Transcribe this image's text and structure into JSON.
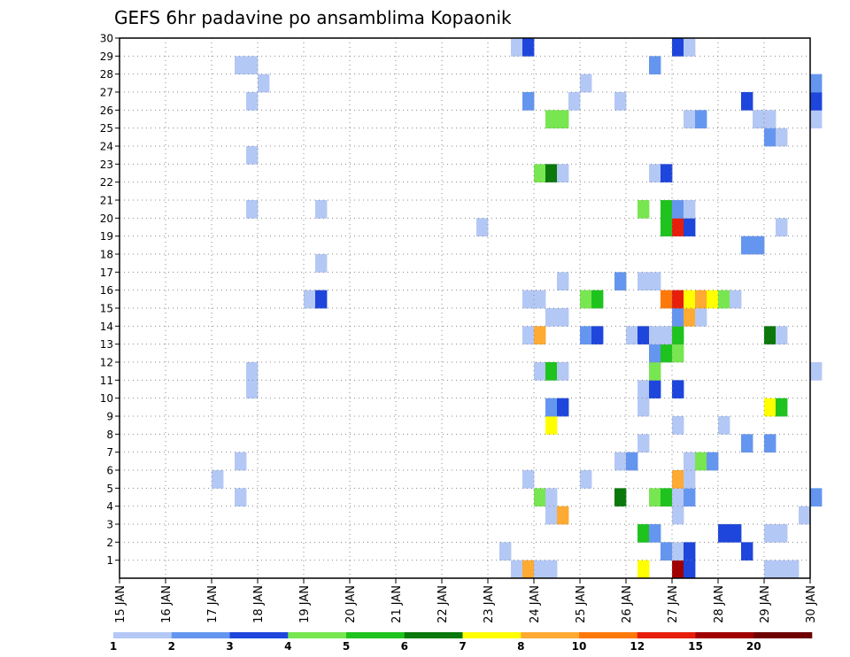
{
  "chart_data": {
    "type": "heatmap",
    "title": "GEFS 6hr padavine po ansamblima Kopaonik",
    "x_labels": [
      "15 JAN",
      "16 JAN",
      "17 JAN",
      "18 JAN",
      "19 JAN",
      "20 JAN",
      "21 JAN",
      "22 JAN",
      "23 JAN",
      "24 JAN",
      "25 JAN",
      "26 JAN",
      "27 JAN",
      "28 JAN",
      "29 JAN",
      "30 JAN"
    ],
    "y_labels": [
      "1",
      "2",
      "3",
      "4",
      "5",
      "6",
      "7",
      "8",
      "9",
      "10",
      "11",
      "12",
      "13",
      "14",
      "15",
      "16",
      "17",
      "18",
      "19",
      "20",
      "21",
      "22",
      "23",
      "24",
      "25",
      "26",
      "27",
      "28",
      "29",
      "30"
    ],
    "ylim": [
      0,
      30
    ],
    "grid": true,
    "legend": {
      "position": "bottom",
      "ticks": [
        "1",
        "2",
        "3",
        "4",
        "5",
        "6",
        "7",
        "8",
        "10",
        "12",
        "15",
        "20"
      ],
      "colors": [
        "#b4c8f5",
        "#6496f0",
        "#1e46dc",
        "#78e650",
        "#1ec31e",
        "#0a780a",
        "#ffff00",
        "#ffaa32",
        "#ff780a",
        "#e61e0a",
        "#a00000",
        "#6e0000"
      ]
    },
    "cells": [
      {
        "t": 8.5,
        "m": 0,
        "v": 1
      },
      {
        "t": 8.75,
        "m": 0,
        "v": 8
      },
      {
        "t": 9.0,
        "m": 0,
        "v": 1
      },
      {
        "t": 9.25,
        "m": 0,
        "v": 1
      },
      {
        "t": 11.25,
        "m": 0,
        "v": 7
      },
      {
        "t": 12.0,
        "m": 0,
        "v": 15
      },
      {
        "t": 12.25,
        "m": 0,
        "v": 3
      },
      {
        "t": 14.0,
        "m": 0,
        "v": 1
      },
      {
        "t": 14.25,
        "m": 0,
        "v": 1
      },
      {
        "t": 14.5,
        "m": 0,
        "v": 1
      },
      {
        "t": 8.25,
        "m": 1,
        "v": 1
      },
      {
        "t": 11.75,
        "m": 1,
        "v": 2
      },
      {
        "t": 12.0,
        "m": 1,
        "v": 1
      },
      {
        "t": 12.25,
        "m": 1,
        "v": 3
      },
      {
        "t": 13.5,
        "m": 1,
        "v": 3
      },
      {
        "t": 11.25,
        "m": 2,
        "v": 5
      },
      {
        "t": 11.5,
        "m": 2,
        "v": 2
      },
      {
        "t": 13.0,
        "m": 2,
        "v": 3
      },
      {
        "t": 13.25,
        "m": 2,
        "v": 3
      },
      {
        "t": 14.0,
        "m": 2,
        "v": 1
      },
      {
        "t": 14.25,
        "m": 2,
        "v": 1
      },
      {
        "t": 9.25,
        "m": 3,
        "v": 1
      },
      {
        "t": 9.5,
        "m": 3,
        "v": 8
      },
      {
        "t": 12.0,
        "m": 3,
        "v": 1
      },
      {
        "t": 14.75,
        "m": 3,
        "v": 1
      },
      {
        "t": 2.5,
        "m": 4,
        "v": 1
      },
      {
        "t": 9.0,
        "m": 4,
        "v": 4
      },
      {
        "t": 9.25,
        "m": 4,
        "v": 1
      },
      {
        "t": 10.75,
        "m": 4,
        "v": 6
      },
      {
        "t": 11.5,
        "m": 4,
        "v": 4
      },
      {
        "t": 11.75,
        "m": 4,
        "v": 5
      },
      {
        "t": 12.0,
        "m": 4,
        "v": 1
      },
      {
        "t": 12.25,
        "m": 4,
        "v": 2
      },
      {
        "t": 15.0,
        "m": 4,
        "v": 2
      },
      {
        "t": 2.0,
        "m": 5,
        "v": 1
      },
      {
        "t": 8.75,
        "m": 5,
        "v": 1
      },
      {
        "t": 10.0,
        "m": 5,
        "v": 1
      },
      {
        "t": 12.0,
        "m": 5,
        "v": 8
      },
      {
        "t": 12.25,
        "m": 5,
        "v": 1
      },
      {
        "t": 2.5,
        "m": 6,
        "v": 1
      },
      {
        "t": 10.75,
        "m": 6,
        "v": 1
      },
      {
        "t": 11.0,
        "m": 6,
        "v": 2
      },
      {
        "t": 12.25,
        "m": 6,
        "v": 1
      },
      {
        "t": 12.5,
        "m": 6,
        "v": 4
      },
      {
        "t": 12.75,
        "m": 6,
        "v": 2
      },
      {
        "t": 11.25,
        "m": 7,
        "v": 1
      },
      {
        "t": 13.5,
        "m": 7,
        "v": 2
      },
      {
        "t": 14.0,
        "m": 7,
        "v": 2
      },
      {
        "t": 9.25,
        "m": 8,
        "v": 7
      },
      {
        "t": 12.0,
        "m": 8,
        "v": 1
      },
      {
        "t": 13.0,
        "m": 8,
        "v": 1
      },
      {
        "t": 9.25,
        "m": 9,
        "v": 2
      },
      {
        "t": 9.5,
        "m": 9,
        "v": 3
      },
      {
        "t": 11.25,
        "m": 9,
        "v": 1
      },
      {
        "t": 14.0,
        "m": 9,
        "v": 7
      },
      {
        "t": 14.25,
        "m": 9,
        "v": 5
      },
      {
        "t": 2.75,
        "m": 10,
        "v": 1
      },
      {
        "t": 11.25,
        "m": 10,
        "v": 1
      },
      {
        "t": 11.5,
        "m": 10,
        "v": 3
      },
      {
        "t": 12.0,
        "m": 10,
        "v": 3
      },
      {
        "t": 2.75,
        "m": 11,
        "v": 1
      },
      {
        "t": 9.0,
        "m": 11,
        "v": 1
      },
      {
        "t": 9.25,
        "m": 11,
        "v": 5
      },
      {
        "t": 9.5,
        "m": 11,
        "v": 1
      },
      {
        "t": 11.5,
        "m": 11,
        "v": 4
      },
      {
        "t": 15.0,
        "m": 11,
        "v": 1
      },
      {
        "t": 11.5,
        "m": 12,
        "v": 2
      },
      {
        "t": 11.75,
        "m": 12,
        "v": 5
      },
      {
        "t": 12.0,
        "m": 12,
        "v": 4
      },
      {
        "t": 8.75,
        "m": 13,
        "v": 1
      },
      {
        "t": 9.0,
        "m": 13,
        "v": 8
      },
      {
        "t": 10.0,
        "m": 13,
        "v": 2
      },
      {
        "t": 10.25,
        "m": 13,
        "v": 3
      },
      {
        "t": 11.0,
        "m": 13,
        "v": 1
      },
      {
        "t": 11.25,
        "m": 13,
        "v": 3
      },
      {
        "t": 11.5,
        "m": 13,
        "v": 1
      },
      {
        "t": 11.75,
        "m": 13,
        "v": 1
      },
      {
        "t": 12.0,
        "m": 13,
        "v": 5
      },
      {
        "t": 14.0,
        "m": 13,
        "v": 6
      },
      {
        "t": 14.25,
        "m": 13,
        "v": 1
      },
      {
        "t": 9.25,
        "m": 14,
        "v": 1
      },
      {
        "t": 9.5,
        "m": 14,
        "v": 1
      },
      {
        "t": 12.0,
        "m": 14,
        "v": 2
      },
      {
        "t": 12.25,
        "m": 14,
        "v": 8
      },
      {
        "t": 12.5,
        "m": 14,
        "v": 1
      },
      {
        "t": 4.0,
        "m": 15,
        "v": 1
      },
      {
        "t": 4.25,
        "m": 15,
        "v": 3
      },
      {
        "t": 8.75,
        "m": 15,
        "v": 1
      },
      {
        "t": 9.0,
        "m": 15,
        "v": 1
      },
      {
        "t": 10.0,
        "m": 15,
        "v": 4
      },
      {
        "t": 10.25,
        "m": 15,
        "v": 5
      },
      {
        "t": 11.75,
        "m": 15,
        "v": 10
      },
      {
        "t": 12.0,
        "m": 15,
        "v": 12
      },
      {
        "t": 12.25,
        "m": 15,
        "v": 7
      },
      {
        "t": 12.5,
        "m": 15,
        "v": 8
      },
      {
        "t": 12.75,
        "m": 15,
        "v": 7
      },
      {
        "t": 13.0,
        "m": 15,
        "v": 4
      },
      {
        "t": 13.25,
        "m": 15,
        "v": 1
      },
      {
        "t": 9.5,
        "m": 16,
        "v": 1
      },
      {
        "t": 10.75,
        "m": 16,
        "v": 2
      },
      {
        "t": 11.25,
        "m": 16,
        "v": 1
      },
      {
        "t": 11.5,
        "m": 16,
        "v": 1
      },
      {
        "t": 4.25,
        "m": 17,
        "v": 1
      },
      {
        "t": 13.5,
        "m": 18,
        "v": 2
      },
      {
        "t": 13.75,
        "m": 18,
        "v": 2
      },
      {
        "t": 7.75,
        "m": 19,
        "v": 1
      },
      {
        "t": 11.75,
        "m": 19,
        "v": 5
      },
      {
        "t": 12.0,
        "m": 19,
        "v": 12
      },
      {
        "t": 12.25,
        "m": 19,
        "v": 3
      },
      {
        "t": 14.25,
        "m": 19,
        "v": 1
      },
      {
        "t": 2.75,
        "m": 20,
        "v": 1
      },
      {
        "t": 4.25,
        "m": 20,
        "v": 1
      },
      {
        "t": 11.25,
        "m": 20,
        "v": 4
      },
      {
        "t": 11.75,
        "m": 20,
        "v": 5
      },
      {
        "t": 12.0,
        "m": 20,
        "v": 2
      },
      {
        "t": 12.25,
        "m": 20,
        "v": 1
      },
      {
        "t": 9.0,
        "m": 22,
        "v": 4
      },
      {
        "t": 9.25,
        "m": 22,
        "v": 6
      },
      {
        "t": 9.5,
        "m": 22,
        "v": 1
      },
      {
        "t": 11.5,
        "m": 22,
        "v": 1
      },
      {
        "t": 11.75,
        "m": 22,
        "v": 3
      },
      {
        "t": 2.75,
        "m": 23,
        "v": 1
      },
      {
        "t": 14.0,
        "m": 24,
        "v": 2
      },
      {
        "t": 14.25,
        "m": 24,
        "v": 1
      },
      {
        "t": 9.25,
        "m": 25,
        "v": 4
      },
      {
        "t": 9.5,
        "m": 25,
        "v": 4
      },
      {
        "t": 12.25,
        "m": 25,
        "v": 1
      },
      {
        "t": 12.5,
        "m": 25,
        "v": 2
      },
      {
        "t": 13.75,
        "m": 25,
        "v": 1
      },
      {
        "t": 14.0,
        "m": 25,
        "v": 1
      },
      {
        "t": 15.0,
        "m": 25,
        "v": 1
      },
      {
        "t": 2.75,
        "m": 26,
        "v": 1
      },
      {
        "t": 8.75,
        "m": 26,
        "v": 2
      },
      {
        "t": 9.75,
        "m": 26,
        "v": 1
      },
      {
        "t": 10.75,
        "m": 26,
        "v": 1
      },
      {
        "t": 13.5,
        "m": 26,
        "v": 3
      },
      {
        "t": 15.0,
        "m": 26,
        "v": 3
      },
      {
        "t": 3.0,
        "m": 27,
        "v": 1
      },
      {
        "t": 10.0,
        "m": 27,
        "v": 1
      },
      {
        "t": 15.0,
        "m": 27,
        "v": 2
      },
      {
        "t": 2.5,
        "m": 28,
        "v": 1
      },
      {
        "t": 2.75,
        "m": 28,
        "v": 1
      },
      {
        "t": 11.5,
        "m": 28,
        "v": 2
      },
      {
        "t": 8.5,
        "m": 29,
        "v": 1
      },
      {
        "t": 8.75,
        "m": 29,
        "v": 3
      },
      {
        "t": 12.0,
        "m": 29,
        "v": 3
      },
      {
        "t": 12.25,
        "m": 29,
        "v": 1
      }
    ]
  }
}
